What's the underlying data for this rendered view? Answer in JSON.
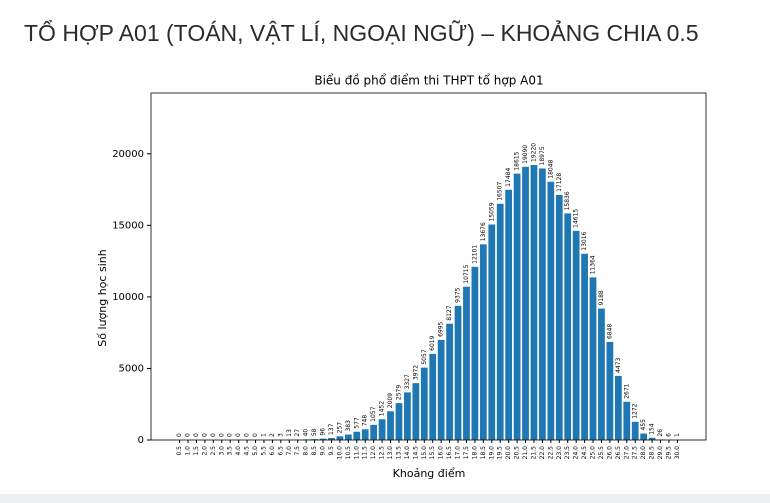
{
  "slide_title": "TỔ HỢP A01 (TOÁN, VẬT LÍ, NGOẠI NGỮ) – KHOẢNG CHIA 0.5",
  "chart_data": {
    "type": "bar",
    "title": "Biểu đồ phổ điểm thi THPT tổ hợp A01",
    "x_label": "Khoảng điểm",
    "y_label": "Số lượng học sinh",
    "categories": [
      "0.5",
      "1.0",
      "1.5",
      "2.0",
      "2.5",
      "3.0",
      "3.5",
      "4.0",
      "4.5",
      "5.0",
      "5.5",
      "6.0",
      "6.5",
      "7.0",
      "7.5",
      "8.0",
      "8.5",
      "9.0",
      "9.5",
      "10.0",
      "10.5",
      "11.0",
      "11.5",
      "12.0",
      "12.5",
      "13.0",
      "13.5",
      "14.0",
      "14.5",
      "15.0",
      "15.5",
      "16.0",
      "16.5",
      "17.0",
      "17.5",
      "18.0",
      "18.5",
      "19.0",
      "19.5",
      "20.0",
      "20.5",
      "21.0",
      "21.5",
      "22.0",
      "22.5",
      "23.0",
      "23.5",
      "24.0",
      "24.5",
      "25.0",
      "25.5",
      "26.0",
      "26.5",
      "27.0",
      "27.5",
      "28.0",
      "28.5",
      "29.0",
      "29.5",
      "30.0"
    ],
    "values": [
      0,
      0,
      0,
      0,
      0,
      0,
      0,
      0,
      0,
      0,
      1,
      2,
      3,
      13,
      27,
      40,
      58,
      96,
      137,
      257,
      383,
      577,
      748,
      1057,
      1452,
      2009,
      2579,
      3327,
      3972,
      5057,
      6019,
      6995,
      8127,
      9375,
      10715,
      12101,
      13676,
      15059,
      16507,
      17484,
      18615,
      19090,
      19220,
      18975,
      18048,
      17128,
      15836,
      14615,
      13016,
      11364,
      9188,
      6848,
      4473,
      2671,
      1272,
      455,
      154,
      26,
      6,
      1
    ],
    "color": "#1f77b4",
    "ylim": [
      0,
      24250
    ],
    "yticks": [
      0,
      5000,
      10000,
      15000,
      20000
    ],
    "grid": false
  }
}
